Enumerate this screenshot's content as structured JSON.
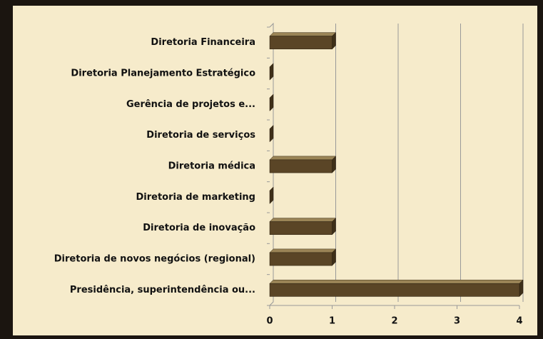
{
  "chart_data": {
    "type": "bar",
    "orientation": "horizontal",
    "categories": [
      "Diretoria Financeira",
      "Diretoria Planejamento Estratégico",
      "Gerência de projetos e...",
      "Diretoria de serviços",
      "Diretoria médica",
      "Diretoria de marketing",
      "Diretoria de inovação",
      "Diretoria de novos negócios (regional)",
      "Presidência, superintendência ou..."
    ],
    "values": [
      1,
      0,
      0,
      0,
      1,
      0,
      1,
      1,
      4
    ],
    "color": "#5a4526",
    "xlim": [
      0,
      4
    ],
    "xticks": [
      0,
      1,
      2,
      3,
      4
    ],
    "grid": true
  }
}
